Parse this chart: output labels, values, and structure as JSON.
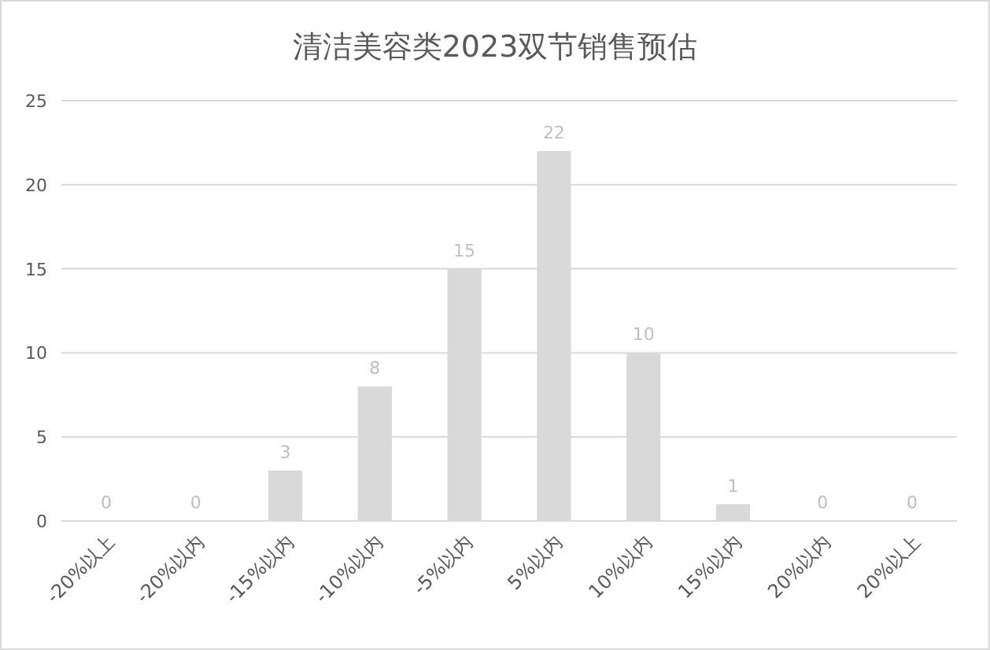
{
  "chart_data": {
    "type": "bar",
    "title": "清洁美容类2023双节销售预估",
    "categories": [
      "-20%以上",
      "-20%以内",
      "-15%以内",
      "-10%以内",
      "-5%以内",
      "5%以内",
      "10%以内",
      "15%以内",
      "20%以内",
      "20%以上"
    ],
    "values": [
      0,
      0,
      3,
      8,
      15,
      22,
      10,
      1,
      0,
      0
    ],
    "color": "#d9d9d9",
    "ylim": [
      0,
      25
    ],
    "yticks": [
      0,
      5,
      10,
      15,
      20,
      25
    ],
    "grid": "y",
    "data_labels": true
  }
}
